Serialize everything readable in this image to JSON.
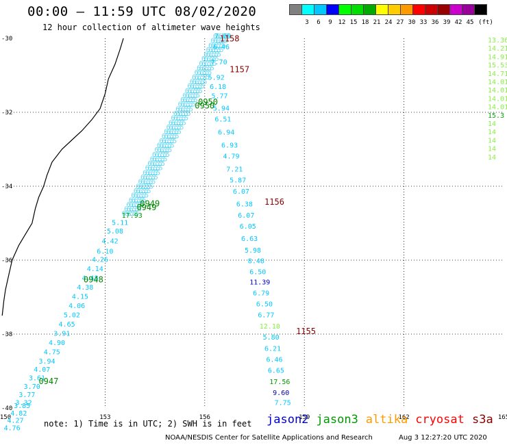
{
  "header": {
    "title": "00:00 – 11:59 UTC 08/02/2020",
    "subtitle": "12 hour collection of altimeter wave heights"
  },
  "colorbar": {
    "unit_label": "(ft)",
    "items": [
      {
        "label": "",
        "color": "#808080"
      },
      {
        "label": "3",
        "color": "#00ffff"
      },
      {
        "label": "6",
        "color": "#00c8ff"
      },
      {
        "label": "9",
        "color": "#0000ff"
      },
      {
        "label": "12",
        "color": "#00ff00"
      },
      {
        "label": "15",
        "color": "#00dd00"
      },
      {
        "label": "18",
        "color": "#00aa00"
      },
      {
        "label": "21",
        "color": "#ffff00"
      },
      {
        "label": "24",
        "color": "#ffcc00"
      },
      {
        "label": "27",
        "color": "#ff9900"
      },
      {
        "label": "30",
        "color": "#ff0000"
      },
      {
        "label": "33",
        "color": "#cc0000"
      },
      {
        "label": "36",
        "color": "#990000"
      },
      {
        "label": "39",
        "color": "#cc00cc"
      },
      {
        "label": "42",
        "color": "#990099"
      },
      {
        "label": "45",
        "color": "#000000"
      }
    ]
  },
  "map": {
    "lon_labels": [
      "150",
      "153",
      "156",
      "159",
      "162",
      "165"
    ],
    "lat_labels": [
      "-30",
      "-32",
      "-34",
      "-36",
      "-38",
      "-40"
    ],
    "lon_range": [
      150,
      165
    ],
    "lat_range": [
      -30,
      -40
    ]
  },
  "time_labels": [
    {
      "text": "1158",
      "color": "#880000",
      "lon": 156.45,
      "lat": -30.08
    },
    {
      "text": "1157",
      "color": "#880000",
      "lon": 156.75,
      "lat": -30.92
    },
    {
      "text": "1156",
      "color": "#880000",
      "lon": 157.8,
      "lat": -34.5
    },
    {
      "text": "1155",
      "color": "#880000",
      "lon": 158.75,
      "lat": -38.0
    },
    {
      "text": "0950",
      "color": "#008800",
      "lon": 155.8,
      "lat": -31.8
    },
    {
      "text": "0950",
      "color": "#008800",
      "lon": 155.7,
      "lat": -31.9
    },
    {
      "text": "0949",
      "color": "#008800",
      "lon": 154.05,
      "lat": -34.55
    },
    {
      "text": "0949",
      "color": "#008800",
      "lon": 153.95,
      "lat": -34.65
    },
    {
      "text": "0948",
      "color": "#008800",
      "lon": 152.35,
      "lat": -36.6
    },
    {
      "text": "0947",
      "color": "#008800",
      "lon": 151.0,
      "lat": -39.35
    }
  ],
  "tracks": {
    "cryosat_descending": {
      "color": "#00c8ff",
      "points": [
        {
          "lon": 156.3,
          "lat": -30.0,
          "v": "7.09"
        },
        {
          "lon": 156.25,
          "lat": -30.3,
          "v": "6.46"
        },
        {
          "lon": 156.18,
          "lat": -30.7,
          "v": "7.70"
        },
        {
          "lon": 156.1,
          "lat": -31.12,
          "v": "5.92"
        },
        {
          "lon": 156.15,
          "lat": -31.37,
          "v": "6.18"
        },
        {
          "lon": 156.2,
          "lat": -31.62,
          "v": "5.77"
        },
        {
          "lon": 156.25,
          "lat": -31.95,
          "v": "5.94"
        },
        {
          "lon": 156.3,
          "lat": -32.25,
          "v": "6.51"
        },
        {
          "lon": 156.4,
          "lat": -32.6,
          "v": "6.94"
        },
        {
          "lon": 156.5,
          "lat": -32.95,
          "v": "6.93"
        },
        {
          "lon": 156.55,
          "lat": -33.25,
          "v": "4.79"
        },
        {
          "lon": 156.65,
          "lat": -33.6,
          "v": "7.21"
        },
        {
          "lon": 156.75,
          "lat": -33.9,
          "v": "5.87"
        },
        {
          "lon": 156.85,
          "lat": -34.2,
          "v": "6.07"
        },
        {
          "lon": 156.95,
          "lat": -34.55,
          "v": "6.38"
        },
        {
          "lon": 157.0,
          "lat": -34.85,
          "v": "6.07"
        },
        {
          "lon": 157.05,
          "lat": -35.15,
          "v": "6.05"
        },
        {
          "lon": 157.1,
          "lat": -35.48,
          "v": "6.63"
        },
        {
          "lon": 157.2,
          "lat": -35.8,
          "v": "5.98"
        },
        {
          "lon": 157.3,
          "lat": -36.08,
          "v": "8.48"
        },
        {
          "lon": 157.35,
          "lat": -36.38,
          "v": "6.50"
        },
        {
          "lon": 157.35,
          "lat": -36.66,
          "v": "11.39",
          "color": "#0000cc"
        },
        {
          "lon": 157.45,
          "lat": -36.95,
          "v": "6.79"
        },
        {
          "lon": 157.55,
          "lat": -37.25,
          "v": "6.50"
        },
        {
          "lon": 157.6,
          "lat": -37.55,
          "v": "6.77"
        },
        {
          "lon": 157.65,
          "lat": -37.85,
          "v": "12.10",
          "color": "#88ee44"
        },
        {
          "lon": 157.75,
          "lat": -38.15,
          "v": "5.80"
        },
        {
          "lon": 157.8,
          "lat": -38.45,
          "v": "6.21"
        },
        {
          "lon": 157.85,
          "lat": -38.75,
          "v": "6.46"
        },
        {
          "lon": 157.9,
          "lat": -39.05,
          "v": "6.65"
        },
        {
          "lon": 157.95,
          "lat": -39.35,
          "v": "17.56",
          "color": "#009900"
        },
        {
          "lon": 158.05,
          "lat": -39.65,
          "v": "9.60",
          "color": "#0000aa"
        },
        {
          "lon": 158.1,
          "lat": -39.92,
          "v": "7.75"
        }
      ]
    }
  },
  "right_column_values": [
    "13.36",
    "14.21",
    "14.91",
    "15.53",
    "14.71",
    "14.01",
    "14.01",
    "14.01",
    "14.01",
    "15.3",
    "14",
    "14",
    "14",
    "14",
    "14"
  ],
  "southwest_track": [
    {
      "lon": 153.5,
      "lat": -34.85,
      "v": "17.93",
      "color": "#009900"
    },
    {
      "lon": 153.2,
      "lat": -35.05,
      "v": "5.11"
    },
    {
      "lon": 153.05,
      "lat": -35.28,
      "v": "5.08"
    },
    {
      "lon": 152.9,
      "lat": -35.55,
      "v": "4.42"
    },
    {
      "lon": 152.75,
      "lat": -35.82,
      "v": "6.10"
    },
    {
      "lon": 152.6,
      "lat": -36.05,
      "v": "4.26"
    },
    {
      "lon": 152.45,
      "lat": -36.3,
      "v": "4.14"
    },
    {
      "lon": 152.3,
      "lat": -36.55,
      "v": "4.48"
    },
    {
      "lon": 152.15,
      "lat": -36.8,
      "v": "4.38"
    },
    {
      "lon": 152.0,
      "lat": -37.05,
      "v": "4.15"
    },
    {
      "lon": 151.9,
      "lat": -37.3,
      "v": "4.06"
    },
    {
      "lon": 151.75,
      "lat": -37.55,
      "v": "5.02"
    },
    {
      "lon": 151.6,
      "lat": -37.8,
      "v": "4.65"
    },
    {
      "lon": 151.45,
      "lat": -38.05,
      "v": "3.91"
    },
    {
      "lon": 151.3,
      "lat": -38.3,
      "v": "4.90"
    },
    {
      "lon": 151.15,
      "lat": -38.55,
      "v": "4.75"
    },
    {
      "lon": 151.0,
      "lat": -38.8,
      "v": "3.94"
    },
    {
      "lon": 150.85,
      "lat": -39.02,
      "v": "4.07"
    },
    {
      "lon": 150.7,
      "lat": -39.25,
      "v": "3.61"
    },
    {
      "lon": 150.55,
      "lat": -39.48,
      "v": "3.70"
    },
    {
      "lon": 150.4,
      "lat": -39.7,
      "v": "3.77"
    },
    {
      "lon": 150.3,
      "lat": -39.92,
      "v": "3.32"
    }
  ],
  "southwest_track_lower": [
    {
      "lon": 150.25,
      "lat": -40.0,
      "v": "3.85"
    },
    {
      "lon": 150.15,
      "lat": -40.2,
      "v": "4.82"
    },
    {
      "lon": 150.05,
      "lat": -40.4,
      "v": "4.27"
    },
    {
      "lon": 149.95,
      "lat": -40.6,
      "v": "4.76"
    }
  ],
  "note": "note:  1) Time is in UTC;  2) SWH is in feet",
  "missions": [
    {
      "name": "jason2",
      "color": "#0000cc"
    },
    {
      "name": "jason3",
      "color": "#009900"
    },
    {
      "name": "altika",
      "color": "#ff9900"
    },
    {
      "name": "cryosat",
      "color": "#ff0000"
    },
    {
      "name": "s3a",
      "color": "#880000"
    }
  ],
  "footer": {
    "credit": "NOAA/NESDIS Center for Satellite Applications and Research",
    "timestamp": "Aug  3 12:27:20 UTC 2020"
  }
}
